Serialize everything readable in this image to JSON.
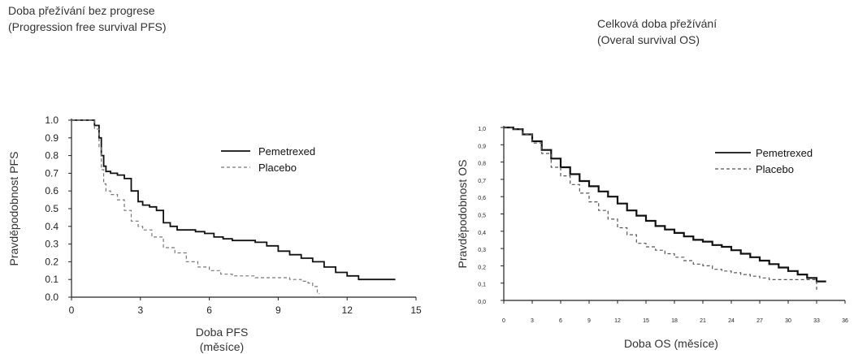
{
  "chart_data": [
    {
      "type": "line",
      "title_lines": [
        "Doba přežívání bez progrese",
        "(Progression free survival PFS)"
      ],
      "xlabel_lines": [
        "Doba PFS",
        "(měsíce)"
      ],
      "ylabel": "Pravděpodobnost PFS",
      "xlim": [
        0,
        15
      ],
      "ylim": [
        0,
        1.0
      ],
      "xticks": [
        "0",
        "3",
        "6",
        "9",
        "12",
        "15"
      ],
      "yticks": [
        "0.0",
        "0.1",
        "0.2",
        "0.3",
        "0.4",
        "0.5",
        "0.6",
        "0.7",
        "0.8",
        "0.9",
        "1.0"
      ],
      "legend_position": "top-right",
      "series": [
        {
          "name": "Pemetrexed",
          "style": "solid",
          "color": "#111111",
          "x": [
            0,
            1.0,
            1.2,
            1.3,
            1.4,
            1.5,
            1.7,
            2.0,
            2.3,
            2.6,
            2.9,
            3.1,
            3.4,
            3.7,
            4.0,
            4.3,
            4.6,
            5.0,
            5.4,
            5.8,
            6.2,
            6.6,
            7.0,
            7.5,
            8.0,
            8.5,
            9.0,
            9.5,
            10.0,
            10.5,
            11.0,
            11.5,
            12.0,
            12.5,
            13.0,
            13.5,
            14.1
          ],
          "y": [
            1.0,
            0.97,
            0.9,
            0.8,
            0.74,
            0.71,
            0.7,
            0.69,
            0.67,
            0.6,
            0.54,
            0.52,
            0.51,
            0.49,
            0.42,
            0.4,
            0.38,
            0.38,
            0.37,
            0.36,
            0.34,
            0.33,
            0.32,
            0.32,
            0.31,
            0.29,
            0.26,
            0.24,
            0.22,
            0.2,
            0.17,
            0.14,
            0.12,
            0.1,
            0.1,
            0.1,
            0.1
          ]
        },
        {
          "name": "Placebo",
          "style": "dashed",
          "color": "#777777",
          "x": [
            0,
            1.0,
            1.2,
            1.3,
            1.4,
            1.5,
            1.7,
            2.0,
            2.3,
            2.6,
            2.9,
            3.1,
            3.5,
            4.0,
            4.5,
            5.0,
            5.5,
            6.0,
            6.5,
            7.0,
            7.5,
            8.0,
            8.5,
            9.0,
            9.5,
            10.0,
            10.3,
            10.5,
            10.7,
            10.8
          ],
          "y": [
            1.0,
            0.95,
            0.85,
            0.72,
            0.64,
            0.6,
            0.58,
            0.55,
            0.49,
            0.43,
            0.4,
            0.38,
            0.34,
            0.28,
            0.25,
            0.2,
            0.17,
            0.15,
            0.13,
            0.12,
            0.12,
            0.11,
            0.11,
            0.11,
            0.1,
            0.09,
            0.08,
            0.06,
            0.02,
            0.02
          ]
        }
      ]
    },
    {
      "type": "line",
      "title_lines": [
        "Celková doba přežívání",
        "(Overal survival OS)"
      ],
      "xlabel_lines": [
        "Doba OS (měsíce)"
      ],
      "ylabel": "Pravděpodobnost OS",
      "xlim": [
        0,
        36
      ],
      "ylim": [
        0,
        1.0
      ],
      "xticks": [
        "0",
        "3",
        "6",
        "9",
        "12",
        "15",
        "18",
        "21",
        "24",
        "27",
        "30",
        "33",
        "36"
      ],
      "yticks": [
        "0,0",
        "0,1",
        "0,2",
        "0,3",
        "0,4",
        "0,5",
        "0,6",
        "0,7",
        "0,8",
        "0,9",
        "1,0"
      ],
      "legend_position": "top-right",
      "series": [
        {
          "name": "Pemetrexed",
          "style": "solid",
          "color": "#111111",
          "x": [
            0,
            1,
            2,
            3,
            4,
            5,
            6,
            7,
            8,
            9,
            10,
            11,
            12,
            13,
            14,
            15,
            16,
            17,
            18,
            19,
            20,
            21,
            22,
            23,
            24,
            25,
            26,
            27,
            28,
            29,
            30,
            31,
            32,
            33,
            34
          ],
          "y": [
            1.0,
            0.99,
            0.96,
            0.92,
            0.87,
            0.82,
            0.77,
            0.73,
            0.69,
            0.66,
            0.63,
            0.6,
            0.56,
            0.52,
            0.49,
            0.46,
            0.43,
            0.41,
            0.39,
            0.37,
            0.35,
            0.34,
            0.32,
            0.31,
            0.29,
            0.27,
            0.25,
            0.23,
            0.21,
            0.19,
            0.17,
            0.15,
            0.13,
            0.11,
            0.11
          ]
        },
        {
          "name": "Placebo",
          "style": "dashed",
          "color": "#555555",
          "x": [
            0,
            1,
            2,
            3,
            4,
            5,
            6,
            7,
            8,
            9,
            10,
            11,
            12,
            13,
            14,
            15,
            16,
            17,
            18,
            19,
            20,
            21,
            22,
            23,
            24,
            25,
            26,
            27,
            28,
            29,
            30,
            31,
            32,
            33
          ],
          "y": [
            1.0,
            0.99,
            0.96,
            0.91,
            0.85,
            0.77,
            0.72,
            0.67,
            0.62,
            0.57,
            0.52,
            0.47,
            0.42,
            0.38,
            0.33,
            0.31,
            0.29,
            0.27,
            0.25,
            0.23,
            0.21,
            0.2,
            0.18,
            0.17,
            0.16,
            0.15,
            0.14,
            0.13,
            0.12,
            0.12,
            0.12,
            0.12,
            0.12,
            0.06
          ]
        }
      ]
    }
  ]
}
